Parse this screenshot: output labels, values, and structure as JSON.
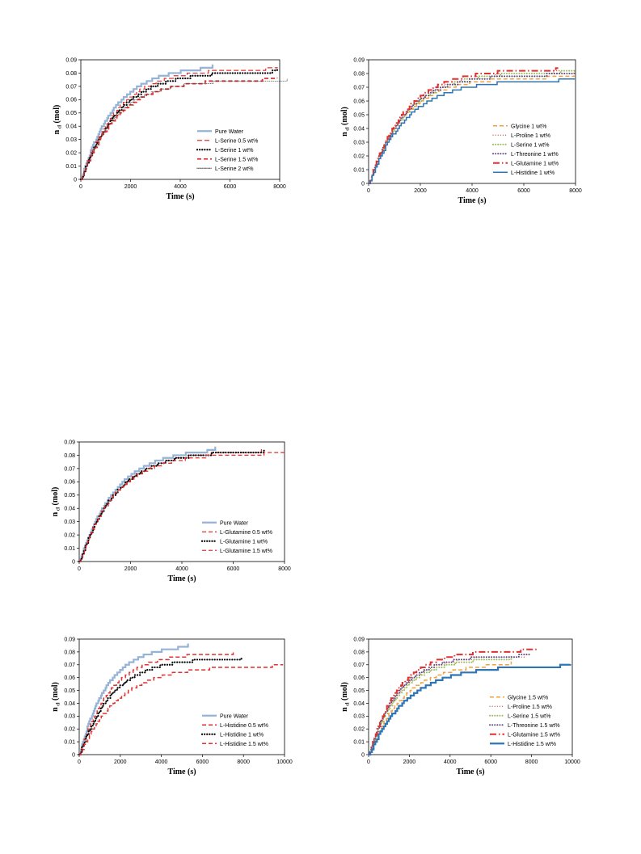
{
  "chart_data": [
    {
      "id": "serine",
      "type": "line",
      "xlabel": "Time (s)",
      "ylabel_main": "n",
      "ylabel_sub": "cl",
      "ylabel_unit": " (mol)",
      "xlim": [
        0,
        8000
      ],
      "ylim": [
        0,
        0.09
      ],
      "xticks": [
        "0",
        "2000",
        "4000",
        "6000",
        "8000"
      ],
      "yticks": [
        "0",
        "0.01",
        "0.02",
        "0.03",
        "0.04",
        "0.05",
        "0.06",
        "0.07",
        "0.08",
        "0.09"
      ],
      "legend_position": "bottom-right",
      "series": [
        {
          "name": "Pure Water",
          "color": "#95b3d7",
          "style": "solid",
          "width": 2.2,
          "final": 0.0865,
          "tau": 1350,
          "xend": 5300
        },
        {
          "name": "L-Serine  0.5 wt%",
          "color": "#e03030",
          "style": "double-dash",
          "width": 1.2,
          "final": 0.0845,
          "tau": 1450,
          "xend": 7900
        },
        {
          "name": "L-Serine  1   wt%",
          "color": "#000000",
          "style": "dots",
          "width": 2.2,
          "final": 0.0825,
          "tau": 1500,
          "xend": 7900
        },
        {
          "name": "L-Serine  1.5 wt%",
          "color": "#e03030",
          "style": "dash",
          "width": 1.8,
          "final": 0.0765,
          "tau": 1450,
          "xend": 7900
        },
        {
          "name": "L-Serine  2   wt%",
          "color": "#333333",
          "style": "fine-dots",
          "width": 0.9,
          "final": 0.0755,
          "tau": 1350,
          "xend": 8300
        }
      ]
    },
    {
      "id": "aminoacids-1wt",
      "type": "line",
      "xlabel": "Time (s)",
      "ylabel_main": "n",
      "ylabel_sub": "cl",
      "ylabel_unit": " (mol)",
      "xlim": [
        0,
        8000
      ],
      "ylim": [
        0,
        0.09
      ],
      "xticks": [
        "0",
        "2000",
        "4000",
        "6000",
        "8000"
      ],
      "yticks": [
        "0",
        "0.01",
        "0.02",
        "0.03",
        "0.04",
        "0.05",
        "0.06",
        "0.07",
        "0.08",
        "0.09"
      ],
      "legend_position": "bottom-right",
      "series": [
        {
          "name": "Glycine 1 wt%",
          "color": "#f0a040",
          "style": "dash",
          "width": 1.5,
          "final": 0.0785,
          "tau": 1350,
          "xend": 7950
        },
        {
          "name": "L-Proline 1 wt%",
          "color": "#c0504d",
          "style": "dots",
          "width": 1.2,
          "final": 0.0825,
          "tau": 1400,
          "xend": 7950
        },
        {
          "name": "L-Serine  1 wt%",
          "color": "#9bbb59",
          "style": "dots",
          "width": 2.0,
          "final": 0.0825,
          "tau": 1450,
          "xend": 7950
        },
        {
          "name": "L-Threonine 1 wt%",
          "color": "#604a7b",
          "style": "dots",
          "width": 2.0,
          "final": 0.0805,
          "tau": 1350,
          "xend": 7950
        },
        {
          "name": "L-Glutamine 1 wt%",
          "color": "#e03030",
          "style": "long-dash-dot",
          "width": 2.0,
          "final": 0.0845,
          "tau": 1400,
          "xend": 7300
        },
        {
          "name": "L-Histidine   1 wt%",
          "color": "#2e75b6",
          "style": "solid",
          "width": 1.5,
          "final": 0.0765,
          "tau": 1450,
          "xend": 7950
        }
      ]
    },
    {
      "id": "glutamine",
      "type": "line",
      "xlabel": "Time (s)",
      "ylabel_main": "n",
      "ylabel_sub": "cl",
      "ylabel_unit": " (mol)",
      "xlim": [
        0,
        8000
      ],
      "ylim": [
        0,
        0.09
      ],
      "xticks": [
        "0",
        "2000",
        "4000",
        "6000",
        "8000"
      ],
      "yticks": [
        "0",
        "0.01",
        "0.02",
        "0.03",
        "0.04",
        "0.05",
        "0.06",
        "0.07",
        "0.08",
        "0.09"
      ],
      "legend_position": "bottom-right",
      "series": [
        {
          "name": "Pure Water",
          "color": "#95b3d7",
          "style": "solid",
          "width": 2.2,
          "final": 0.0865,
          "tau": 1400,
          "xend": 5300
        },
        {
          "name": "L-Glutamine  0.5 wt%",
          "color": "#e03030",
          "style": "dash",
          "width": 1.3,
          "final": 0.0845,
          "tau": 1450,
          "xend": 7100
        },
        {
          "name": "L-Glutamine  1    wt%",
          "color": "#000000",
          "style": "dots",
          "width": 2.2,
          "final": 0.0845,
          "tau": 1450,
          "xend": 7200
        },
        {
          "name": "L-Glutamine  1.5 wt%",
          "color": "#e03030",
          "style": "dash",
          "width": 1.3,
          "final": 0.0825,
          "tau": 1400,
          "xend": 8000
        }
      ]
    },
    {
      "id": "histidine",
      "type": "line",
      "xlabel": "Time (s)",
      "ylabel_main": "n",
      "ylabel_sub": "cl",
      "ylabel_unit": " (mol)",
      "xlim": [
        0,
        10000
      ],
      "ylim": [
        0,
        0.09
      ],
      "xticks": [
        "0",
        "2000",
        "4000",
        "6000",
        "8000",
        "10000"
      ],
      "yticks": [
        "0",
        "0.01",
        "0.02",
        "0.03",
        "0.04",
        "0.05",
        "0.06",
        "0.07",
        "0.08",
        "0.09"
      ],
      "legend_position": "bottom-right",
      "series": [
        {
          "name": "Pure Water",
          "color": "#95b3d7",
          "style": "solid",
          "width": 2.2,
          "final": 0.0865,
          "tau": 1350,
          "xend": 5300
        },
        {
          "name": "L-Histidine  0.5 wt%",
          "color": "#e03030",
          "style": "dash",
          "width": 1.5,
          "final": 0.0805,
          "tau": 1500,
          "xend": 7500
        },
        {
          "name": "L-Histidine  1    wt%",
          "color": "#000000",
          "style": "dots",
          "width": 2.2,
          "final": 0.0765,
          "tau": 1600,
          "xend": 7900
        },
        {
          "name": "L-Histidine  1.5  wt%",
          "color": "#e03030",
          "style": "dash",
          "width": 1.5,
          "final": 0.0705,
          "tau": 1900,
          "xend": 9900
        }
      ]
    },
    {
      "id": "aminoacids-1.5wt",
      "type": "line",
      "xlabel": "Time (s)",
      "ylabel_main": "n",
      "ylabel_sub": "cl",
      "ylabel_unit": " (mol)",
      "xlim": [
        0,
        10000
      ],
      "ylim": [
        0,
        0.09
      ],
      "xticks": [
        "0",
        "2000",
        "4000",
        "6000",
        "8000",
        "10000"
      ],
      "yticks": [
        "0",
        "0.01",
        "0.02",
        "0.03",
        "0.04",
        "0.05",
        "0.06",
        "0.07",
        "0.08",
        "0.09"
      ],
      "legend_position": "bottom-right",
      "series": [
        {
          "name": "Glycine 1.5 wt%",
          "color": "#f0a040",
          "style": "dash",
          "width": 1.5,
          "final": 0.0725,
          "tau": 1700,
          "xend": 7000
        },
        {
          "name": "L-Proline 1.5 wt%",
          "color": "#c0504d",
          "style": "dots",
          "width": 1.2,
          "final": 0.0785,
          "tau": 1500,
          "xend": 7900
        },
        {
          "name": "L-Serine   1.5 wt%",
          "color": "#9bbb59",
          "style": "dots",
          "width": 2.0,
          "final": 0.0765,
          "tau": 1500,
          "xend": 7000
        },
        {
          "name": "L-Threonine 1.5 wt%",
          "color": "#604a7b",
          "style": "dots",
          "width": 2.0,
          "final": 0.0785,
          "tau": 1450,
          "xend": 7900
        },
        {
          "name": "L-Glutamine 1.5 wt%",
          "color": "#e03030",
          "style": "long-dash-dot",
          "width": 2.0,
          "final": 0.0825,
          "tau": 1450,
          "xend": 8300
        },
        {
          "name": "L-Histidine   1.5 wt%",
          "color": "#2e75b6",
          "style": "solid",
          "width": 2.2,
          "final": 0.0705,
          "tau": 1900,
          "xend": 9900
        }
      ]
    }
  ]
}
